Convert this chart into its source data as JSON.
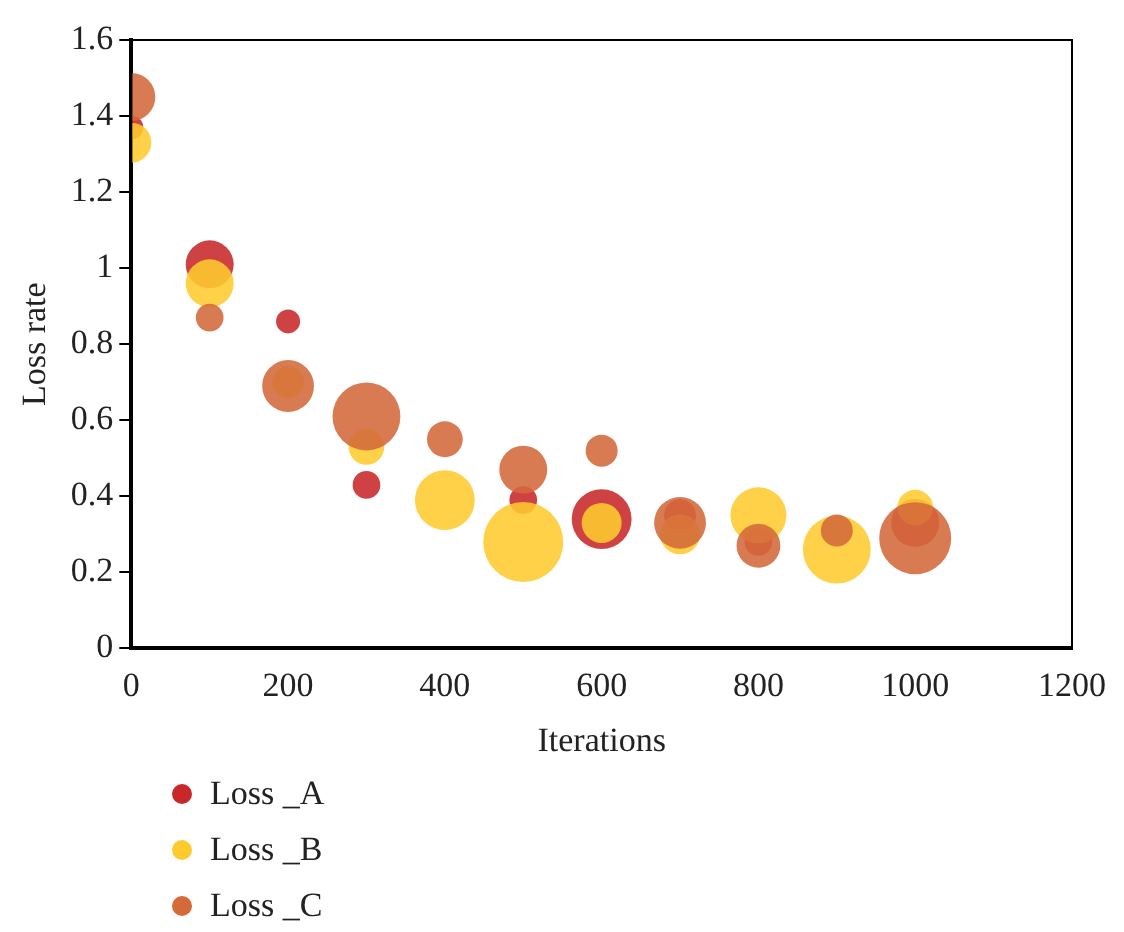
{
  "chart_data": {
    "type": "bubble",
    "xlabel": "Iterations",
    "ylabel": "Loss rate",
    "xlim": [
      0,
      1200
    ],
    "xticks": [
      0,
      200,
      400,
      600,
      800,
      1000,
      1200
    ],
    "ylim": [
      0,
      1.6
    ],
    "yticks": [
      0,
      0.2,
      0.4,
      0.6,
      0.8,
      1,
      1.2,
      1.4,
      1.6
    ],
    "grid": false,
    "legend": "bottom left",
    "series": [
      {
        "name": "Loss _A",
        "color": "#c8282a",
        "x": [
          0,
          100,
          200,
          300,
          400,
          500,
          600,
          700,
          800,
          900,
          1000
        ],
        "values": [
          1.37,
          1.01,
          0.86,
          0.43,
          null,
          0.39,
          0.34,
          0.35,
          0.28,
          null,
          0.33
        ],
        "sizes": [
          0.09,
          0.36,
          0.09,
          0.12,
          null,
          0.12,
          0.56,
          0.16,
          0.12,
          null,
          0.36
        ]
      },
      {
        "name": "Loss _B",
        "color": "#fecb2f",
        "x": [
          0,
          100,
          200,
          300,
          400,
          500,
          600,
          700,
          800,
          900,
          1000
        ],
        "values": [
          1.33,
          0.96,
          0.7,
          0.53,
          0.39,
          0.28,
          0.33,
          0.3,
          0.35,
          0.26,
          0.37
        ],
        "sizes": [
          0.25,
          0.36,
          0.16,
          0.2,
          0.56,
          1,
          0.25,
          0.25,
          0.49,
          0.72,
          0.2
        ]
      },
      {
        "name": "Loss _C",
        "color": "#d4693a",
        "x": [
          0,
          100,
          200,
          300,
          400,
          500,
          600,
          700,
          800,
          900,
          1000
        ],
        "values": [
          1.45,
          0.87,
          0.69,
          0.61,
          0.55,
          0.47,
          0.52,
          0.33,
          0.27,
          0.31,
          0.29
        ],
        "sizes": [
          0.36,
          0.12,
          0.42,
          0.72,
          0.2,
          0.36,
          0.16,
          0.42,
          0.3,
          0.16,
          0.81
        ]
      }
    ]
  }
}
